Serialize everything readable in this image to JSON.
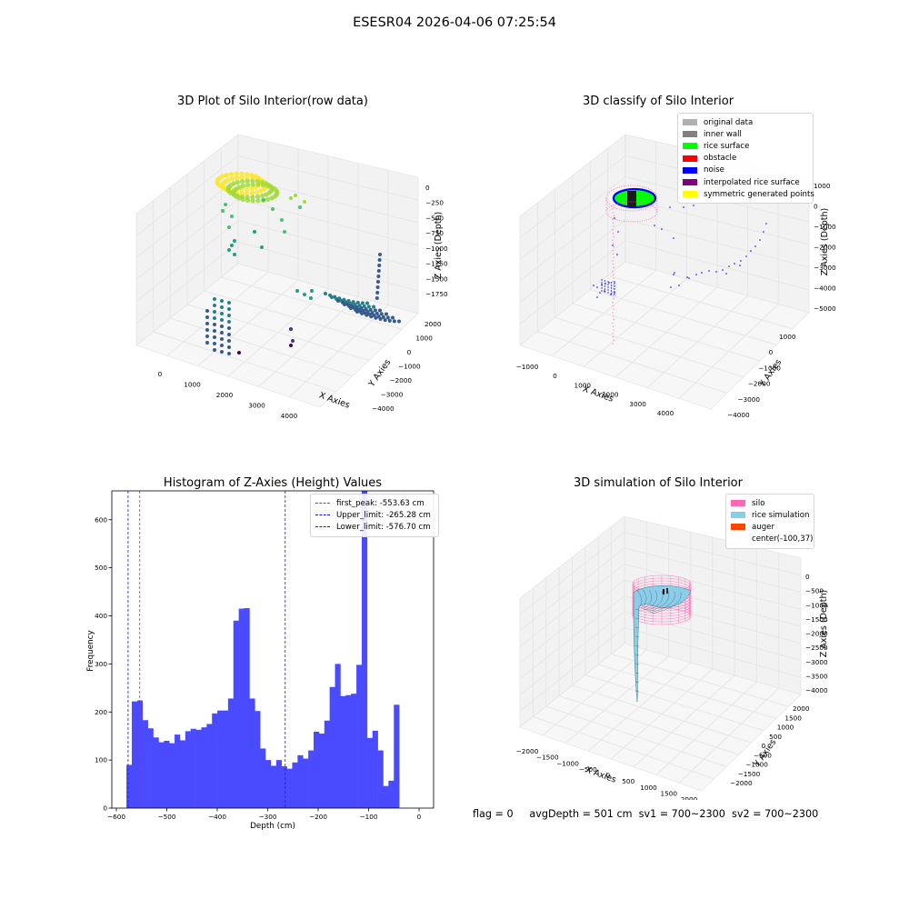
{
  "figure": {
    "suptitle": "ESESR04 2026-04-06 07:25:54",
    "footer": {
      "flag": "flag = 0",
      "avg_depth": "avgDepth = 501 cm",
      "sv1": "sv1 = 700~2300",
      "sv2": "sv2 = 700~2300"
    }
  },
  "colors": {
    "hist_bar": "#4a4aff",
    "first_peak": "#ff2020",
    "limit_line": "#1a1adf",
    "grid": "#e6e6e6",
    "pane_back": "#f2f2f2",
    "pane_floor": "#f7f7f7",
    "silo": "#ff69b4",
    "rice": "#87ceeb",
    "auger": "#ff4500"
  },
  "chart_data": [
    {
      "type": "scatter",
      "dims": 3,
      "title": "3D Plot of Silo Interior(row data)",
      "xlabel": "X Axies",
      "ylabel": "Y Axies",
      "zlabel": "Z Axies (Depth)",
      "xticks": [
        "0",
        "1000",
        "2000",
        "3000",
        "4000"
      ],
      "yticks": [
        "2000",
        "1000",
        "0",
        "−1000",
        "−2000",
        "−3000",
        "−4000"
      ],
      "zticks": [
        "0",
        "−250",
        "−500",
        "−750",
        "−1000",
        "−1250",
        "−1500",
        "−1750"
      ],
      "colormap": "viridis"
    },
    {
      "type": "scatter",
      "dims": 3,
      "title": "3D classify of Silo Interior",
      "xlabel": "X Axies",
      "ylabel": "Y Axies",
      "zlabel": "Z Axies (Depth)",
      "xticks": [
        "−1000",
        "0",
        "1000",
        "2000",
        "3000",
        "4000"
      ],
      "yticks": [
        "1000",
        "0",
        "−1000",
        "−2000",
        "−3000",
        "−4000"
      ],
      "zticks": [
        "1000",
        "0",
        "−1000",
        "−2000",
        "−3000",
        "−4000",
        "−5000"
      ],
      "legend": [
        {
          "label": "original data",
          "color": "#b0b0b0"
        },
        {
          "label": "inner wall",
          "color": "#808080"
        },
        {
          "label": "rice surface",
          "color": "#00ff00"
        },
        {
          "label": "obstacle",
          "color": "#ff0000"
        },
        {
          "label": "noise",
          "color": "#0000ff"
        },
        {
          "label": "interpolated rice surface",
          "color": "#800080"
        },
        {
          "label": "symmetric generated points",
          "color": "#ffff00"
        }
      ]
    },
    {
      "type": "bar",
      "title": "Histogram of Z-Axies (Height) Values",
      "xlabel": "Depth (cm)",
      "ylabel": "Frequency",
      "xlim": [
        -600,
        0
      ],
      "ylim": [
        0,
        650
      ],
      "xticks": [
        -600,
        -500,
        -400,
        -300,
        -200,
        -100,
        0
      ],
      "xtick_labels": [
        "−600",
        "−500",
        "−400",
        "−300",
        "−200",
        "−100",
        "0"
      ],
      "yticks": [
        0,
        100,
        200,
        300,
        400,
        500,
        600
      ],
      "bin_start": -580,
      "bin_width": 10.6,
      "values": [
        90,
        222,
        224,
        183,
        166,
        147,
        137,
        140,
        135,
        153,
        141,
        160,
        165,
        163,
        168,
        175,
        197,
        203,
        203,
        228,
        390,
        415,
        416,
        228,
        202,
        124,
        100,
        88,
        100,
        87,
        82,
        95,
        110,
        103,
        120,
        159,
        155,
        182,
        252,
        300,
        233,
        235,
        238,
        298,
        750,
        146,
        161,
        120,
        46,
        57,
        215
      ],
      "vlines": [
        {
          "x": -553.63,
          "style": "first_peak",
          "label": "first_peak: -553.63 cm"
        },
        {
          "x": -265.28,
          "style": "limit",
          "label": "Upper_limit: -265.28 cm"
        },
        {
          "x": -576.7,
          "style": "limit",
          "label": "Lower_limit: -576.70 cm"
        }
      ]
    },
    {
      "type": "surface",
      "dims": 3,
      "title": "3D simulation of Silo Interior",
      "xlabel": "X Axies",
      "ylabel": "Y Axies",
      "zlabel": "Z Axies (Depth)",
      "xticks": [
        "−2000",
        "−1500",
        "−1000",
        "−500",
        "0",
        "500",
        "1000",
        "1500",
        "2000"
      ],
      "yticks": [
        "2000",
        "1500",
        "1000",
        "500",
        "0",
        "−500",
        "−1000",
        "−1500",
        "−2000"
      ],
      "zticks": [
        "0",
        "−500",
        "−1000",
        "−1500",
        "−2000",
        "−2500",
        "−3000",
        "−3500",
        "−4000"
      ],
      "legend": [
        {
          "label": "silo",
          "color": "#ff69b4",
          "swatch": true
        },
        {
          "label": "rice simulation",
          "color": "#87ceeb",
          "swatch": true
        },
        {
          "label": "auger",
          "color": "#ff4500",
          "swatch": true
        },
        {
          "label": "center(-100,37)",
          "color": "",
          "swatch": false
        }
      ]
    }
  ]
}
